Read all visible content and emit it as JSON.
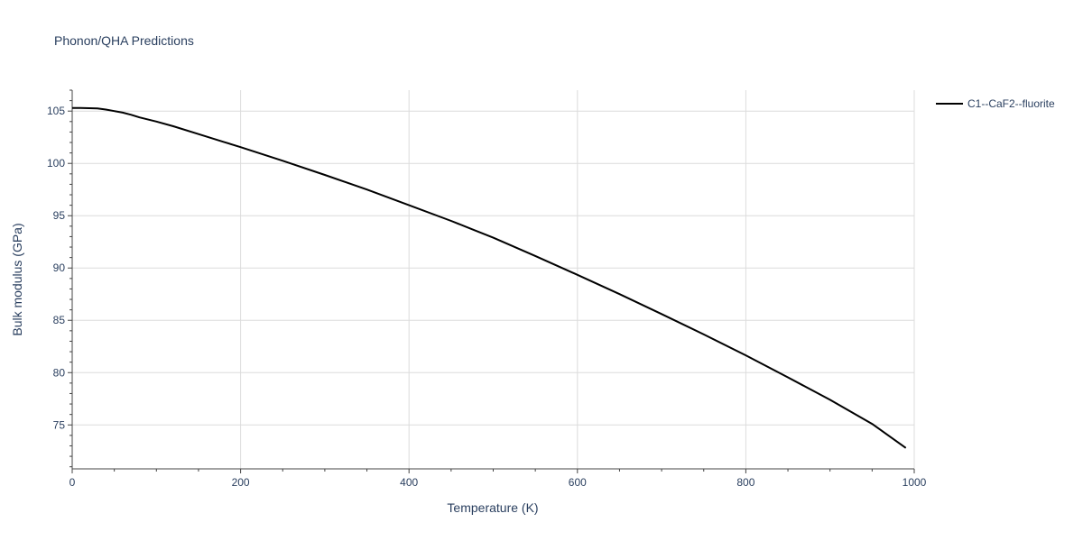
{
  "chart_data": {
    "type": "line",
    "title": "Phonon/QHA Predictions",
    "xlabel": "Temperature (K)",
    "ylabel": "Bulk modulus (GPa)",
    "xlim": [
      0,
      1000
    ],
    "ylim": [
      70.8,
      107
    ],
    "x_ticks": [
      0,
      200,
      400,
      600,
      800,
      1000
    ],
    "y_ticks": [
      75,
      80,
      85,
      90,
      95,
      100,
      105
    ],
    "x_tick_labels": [
      "0",
      "200",
      "400",
      "600",
      "800",
      "1000"
    ],
    "y_tick_labels": [
      "75",
      "80",
      "85",
      "90",
      "95",
      "100",
      "105"
    ],
    "grid": true,
    "legend_position": "top-right",
    "series": [
      {
        "name": "C1--CaF2--fluorite",
        "color": "#000000",
        "x": [
          0,
          10,
          20,
          30,
          40,
          50,
          60,
          70,
          80,
          100,
          120,
          150,
          180,
          200,
          250,
          300,
          350,
          400,
          450,
          500,
          550,
          600,
          650,
          700,
          750,
          800,
          850,
          900,
          950,
          990
        ],
        "y": [
          105.3,
          105.3,
          105.28,
          105.25,
          105.15,
          105.0,
          104.85,
          104.65,
          104.4,
          104.0,
          103.55,
          102.8,
          102.05,
          101.55,
          100.25,
          98.9,
          97.5,
          96.0,
          94.5,
          92.9,
          91.15,
          89.35,
          87.5,
          85.6,
          83.65,
          81.65,
          79.55,
          77.4,
          75.1,
          72.8
        ]
      }
    ]
  }
}
